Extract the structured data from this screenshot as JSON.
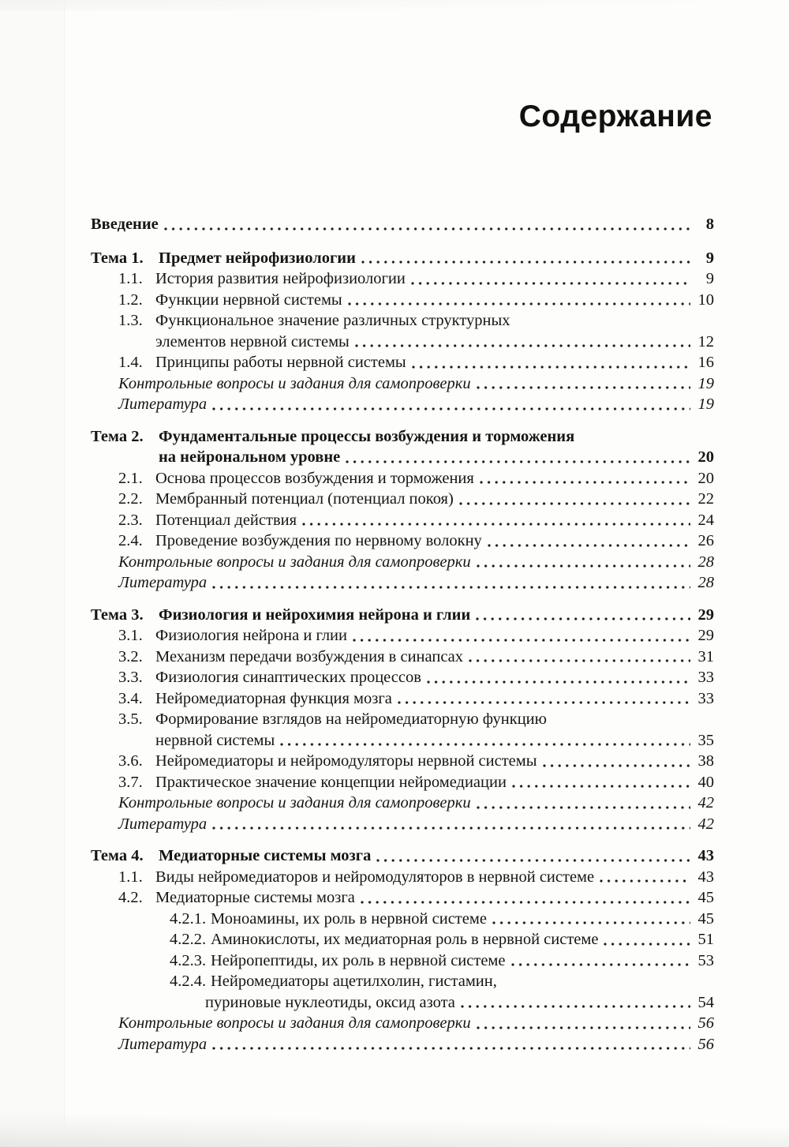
{
  "page_title": "Содержание",
  "toc": {
    "lines": [
      {
        "kind": "intro",
        "ind": 0,
        "label": null,
        "text": "Введение",
        "page": "8"
      },
      {
        "kind": "head",
        "ind": 0,
        "label": "Тема 1.",
        "text": "Предмет нейрофизиологии",
        "page": "9"
      },
      {
        "kind": "item",
        "ind": 1,
        "label": "1.1.",
        "text": "История развития нейрофизиологии",
        "page": "9"
      },
      {
        "kind": "item",
        "ind": 1,
        "label": "1.2.",
        "text": "Функции нервной системы",
        "page": "10"
      },
      {
        "kind": "item",
        "ind": 1,
        "label": "1.3.",
        "text": "Функциональное значение различных структурных",
        "page": null
      },
      {
        "kind": "cont",
        "ind": 3,
        "label": null,
        "text": "элементов нервной системы",
        "page": "12"
      },
      {
        "kind": "item",
        "ind": 1,
        "label": "1.4.",
        "text": "Принципы работы нервной системы",
        "page": "16"
      },
      {
        "kind": "notes",
        "ind": 1,
        "label": null,
        "text": "Контрольные вопросы и задания для самопроверки",
        "page": "19"
      },
      {
        "kind": "notes",
        "ind": 1,
        "label": null,
        "text": "Литература",
        "page": "19"
      },
      {
        "kind": "head",
        "ind": 0,
        "label": "Тема 2.",
        "text": "Фундаментальные процессы возбуждения и торможения",
        "page": null
      },
      {
        "kind": "headcont",
        "ind": 2,
        "label": null,
        "text": "на нейрональном уровне",
        "page": "20"
      },
      {
        "kind": "item",
        "ind": 1,
        "label": "2.1.",
        "text": "Основа процессов возбуждения и торможения",
        "page": "20"
      },
      {
        "kind": "item",
        "ind": 1,
        "label": "2.2.",
        "text": "Мембранный потенциал (потенциал покоя)",
        "page": "22"
      },
      {
        "kind": "item",
        "ind": 1,
        "label": "2.3.",
        "text": "Потенциал действия",
        "page": "24"
      },
      {
        "kind": "item",
        "ind": 1,
        "label": "2.4.",
        "text": "Проведение возбуждения по нервному волокну",
        "page": "26"
      },
      {
        "kind": "notes",
        "ind": 1,
        "label": null,
        "text": "Контрольные вопросы и задания для самопроверки",
        "page": "28"
      },
      {
        "kind": "notes",
        "ind": 1,
        "label": null,
        "text": "Литература",
        "page": "28"
      },
      {
        "kind": "head",
        "ind": 0,
        "label": "Тема 3.",
        "text": "Физиология и нейрохимия нейрона и глии",
        "page": "29"
      },
      {
        "kind": "item",
        "ind": 1,
        "label": "3.1.",
        "text": "Физиология нейрона и глии",
        "page": "29"
      },
      {
        "kind": "item",
        "ind": 1,
        "label": "3.2.",
        "text": "Механизм передачи возбуждения в синапсах",
        "page": "31"
      },
      {
        "kind": "item",
        "ind": 1,
        "label": "3.3.",
        "text": "Физиология синаптических  процессов",
        "page": "33"
      },
      {
        "kind": "item",
        "ind": 1,
        "label": "3.4.",
        "text": "Нейромедиаторная функция мозга",
        "page": "33"
      },
      {
        "kind": "item",
        "ind": 1,
        "label": "3.5.",
        "text": "Формирование взглядов на нейромедиаторную функцию",
        "page": null
      },
      {
        "kind": "cont",
        "ind": 3,
        "label": null,
        "text": "нервной системы",
        "page": "35"
      },
      {
        "kind": "item",
        "ind": 1,
        "label": "3.6.",
        "text": "Нейромедиаторы и нейромодуляторы нервной системы",
        "page": "38"
      },
      {
        "kind": "item",
        "ind": 1,
        "label": "3.7.",
        "text": "Практическое значение концепции нейромедиации",
        "page": "40"
      },
      {
        "kind": "notes",
        "ind": 1,
        "label": null,
        "text": "Контрольные вопросы и задания для самопроверки",
        "page": "42"
      },
      {
        "kind": "notes",
        "ind": 1,
        "label": null,
        "text": "Литература",
        "page": "42"
      },
      {
        "kind": "head",
        "ind": 0,
        "label": "Тема 4.",
        "text": "Медиаторные системы мозга",
        "page": "43"
      },
      {
        "kind": "item",
        "ind": 1,
        "label": "1.1.",
        "text": "Виды нейромедиаторов и нейромодуляторов в нервной системе",
        "page": "43"
      },
      {
        "kind": "item",
        "ind": 1,
        "label": "4.2.",
        "text": "Медиаторные системы мозга",
        "page": "45"
      },
      {
        "kind": "subitem",
        "ind": 4,
        "label": "4.2.1.",
        "text": "Моноамины, их роль в нервной системе",
        "page": "45"
      },
      {
        "kind": "subitem",
        "ind": 4,
        "label": "4.2.2.",
        "text": "Аминокислоты, их медиаторная роль в нервной системе",
        "page": "51"
      },
      {
        "kind": "subitem",
        "ind": 4,
        "label": "4.2.3.",
        "text": "Нейропептиды, их роль в нервной системе",
        "page": "53"
      },
      {
        "kind": "subitem",
        "ind": 4,
        "label": "4.2.4.",
        "text": "Нейромедиаторы ацетилхолин, гистамин,",
        "page": null
      },
      {
        "kind": "subcont",
        "ind": 5,
        "label": null,
        "text": "пуриновые нуклеотиды, оксид азота",
        "page": "54"
      },
      {
        "kind": "notes",
        "ind": 1,
        "label": null,
        "text": "Контрольные вопросы и задания для самопроверки",
        "page": "56"
      },
      {
        "kind": "notes",
        "ind": 1,
        "label": null,
        "text": "Литература",
        "page": "56"
      }
    ]
  }
}
